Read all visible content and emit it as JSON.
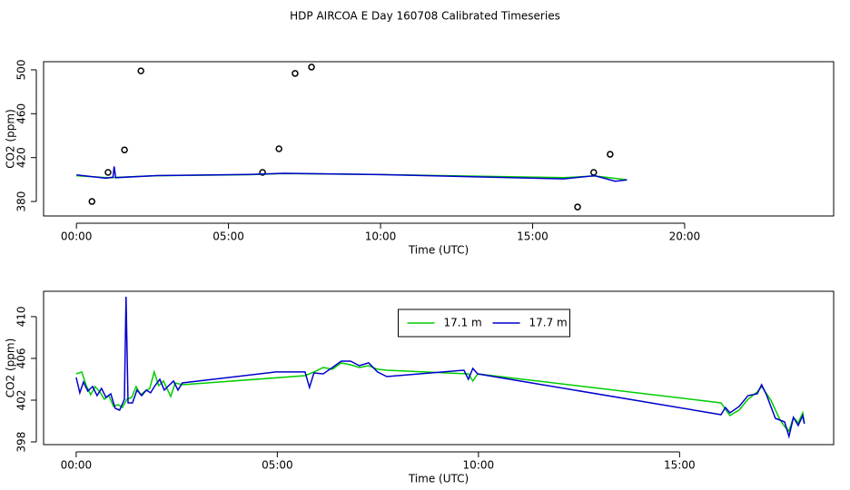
{
  "chart_data": [
    {
      "type": "line",
      "title": "HDP AIRCOA E  Day 160708  Calibrated Timeseries",
      "xlabel": "Time (UTC)",
      "ylabel": "CO2 (ppm)",
      "xlim": [
        -1.08,
        24.9
      ],
      "ylim": [
        366.8,
        507.4
      ],
      "xticks": [
        {
          "value": 0,
          "label": "00:00"
        },
        {
          "value": 5,
          "label": "05:00"
        },
        {
          "value": 10,
          "label": "10:00"
        },
        {
          "value": 15,
          "label": "15:00"
        },
        {
          "value": 20,
          "label": "20:00"
        }
      ],
      "yticks": [
        380,
        420,
        460,
        500
      ],
      "series": [
        {
          "kind": "points",
          "color": "#000000",
          "x": [
            0.51,
            1.04,
            1.58,
            2.12,
            6.12,
            6.66,
            7.19,
            7.73,
            16.48,
            17.01,
            17.55
          ],
          "values": [
            380,
            406.5,
            427,
            499,
            406.5,
            428,
            496.7,
            502.5,
            375,
            406.5,
            423
          ]
        },
        {
          "kind": "line",
          "color": "#00cc00",
          "x": [
            0,
            1.04,
            2.64,
            5.69,
            6.82,
            9.98,
            16.03,
            17.04,
            18.1
          ],
          "values": [
            403.5,
            401.6,
            403.5,
            404.4,
            405.4,
            404.5,
            401.7,
            403.3,
            399.8
          ]
        },
        {
          "kind": "line",
          "color": "#0000cc",
          "x": [
            0,
            0.97,
            1.2,
            1.24,
            1.29,
            2.64,
            5.69,
            6.82,
            9.98,
            16.03,
            17.04,
            17.72,
            18.1
          ],
          "values": [
            404.2,
            401.2,
            402.1,
            411.9,
            401.7,
            403.6,
            404.7,
            405.7,
            404.5,
            400.6,
            403.5,
            398.5,
            399.7
          ]
        }
      ]
    },
    {
      "type": "line",
      "xlabel": "Time (UTC)",
      "ylabel": "CO2 (ppm)",
      "xlim": [
        -0.81,
        18.83
      ],
      "ylim": [
        397.74,
        412.43
      ],
      "xticks": [
        {
          "value": 0,
          "label": "00:00"
        },
        {
          "value": 5,
          "label": "05:00"
        },
        {
          "value": 10,
          "label": "10:00"
        },
        {
          "value": 15,
          "label": "15:00"
        }
      ],
      "yticks": [
        398,
        402,
        406,
        410
      ],
      "legend": "top",
      "series": [
        {
          "name": "17.1 m",
          "kind": "line",
          "color": "#00cc00",
          "x": [
            0,
            0.14,
            0.25,
            0.36,
            0.47,
            0.59,
            0.7,
            0.81,
            0.93,
            1.04,
            1.15,
            1.26,
            1.38,
            1.49,
            1.6,
            1.72,
            1.83,
            1.94,
            2.05,
            2.17,
            2.35,
            2.46,
            2.64,
            5.69,
            5.91,
            6.14,
            6.37,
            6.59,
            6.82,
            7.04,
            7.27,
            7.49,
            7.72,
            9.75,
            9.86,
            9.98,
            16.03,
            16.25,
            16.36,
            16.48,
            16.7,
            16.93,
            17.04,
            17.27,
            17.49,
            17.61,
            17.72,
            17.83,
            17.95,
            18.06,
            18.1
          ],
          "values": [
            404.52,
            404.7,
            403.39,
            402.52,
            403.3,
            402.78,
            402.09,
            402.43,
            401.39,
            401.57,
            401.3,
            402.09,
            402.26,
            403.3,
            402.52,
            402.87,
            403.13,
            404.7,
            403.39,
            403.83,
            402.35,
            403.65,
            403.48,
            404.35,
            404.7,
            405.13,
            404.96,
            405.57,
            405.39,
            405.13,
            405.3,
            404.96,
            404.87,
            404.52,
            403.83,
            404.52,
            401.74,
            400.52,
            400.78,
            401.04,
            402.09,
            402.78,
            403.3,
            402.0,
            400.17,
            399.48,
            399.04,
            400.35,
            399.83,
            400.78,
            399.83
          ]
        },
        {
          "name": "17.7 m",
          "kind": "line",
          "color": "#0000cc",
          "x": [
            0,
            0.09,
            0.18,
            0.29,
            0.41,
            0.52,
            0.63,
            0.74,
            0.86,
            0.97,
            1.08,
            1.2,
            1.24,
            1.29,
            1.4,
            1.51,
            1.63,
            1.74,
            1.85,
            1.96,
            2.08,
            2.19,
            2.3,
            2.42,
            2.53,
            2.64,
            4.97,
            5.69,
            5.8,
            5.91,
            6.14,
            6.37,
            6.59,
            6.82,
            7.04,
            7.27,
            7.49,
            7.72,
            9.64,
            9.75,
            9.86,
            9.98,
            16.03,
            16.14,
            16.25,
            16.48,
            16.7,
            16.93,
            17.04,
            17.16,
            17.38,
            17.61,
            17.72,
            17.83,
            17.95,
            18.06,
            18.1
          ],
          "values": [
            404.17,
            402.7,
            403.74,
            402.87,
            403.3,
            402.43,
            403.13,
            402.26,
            402.61,
            401.22,
            401.04,
            402.09,
            411.91,
            401.74,
            401.74,
            402.96,
            402.43,
            402.96,
            402.7,
            403.39,
            404.0,
            402.96,
            403.39,
            403.83,
            402.96,
            403.65,
            404.7,
            404.7,
            403.22,
            404.61,
            404.52,
            405.13,
            405.74,
            405.74,
            405.3,
            405.57,
            404.7,
            404.26,
            404.87,
            404.0,
            405.04,
            404.52,
            400.61,
            401.3,
            400.78,
            401.39,
            402.43,
            402.61,
            403.48,
            402.52,
            400.26,
            399.91,
            398.52,
            400.35,
            399.57,
            400.52,
            399.74
          ]
        }
      ]
    }
  ]
}
